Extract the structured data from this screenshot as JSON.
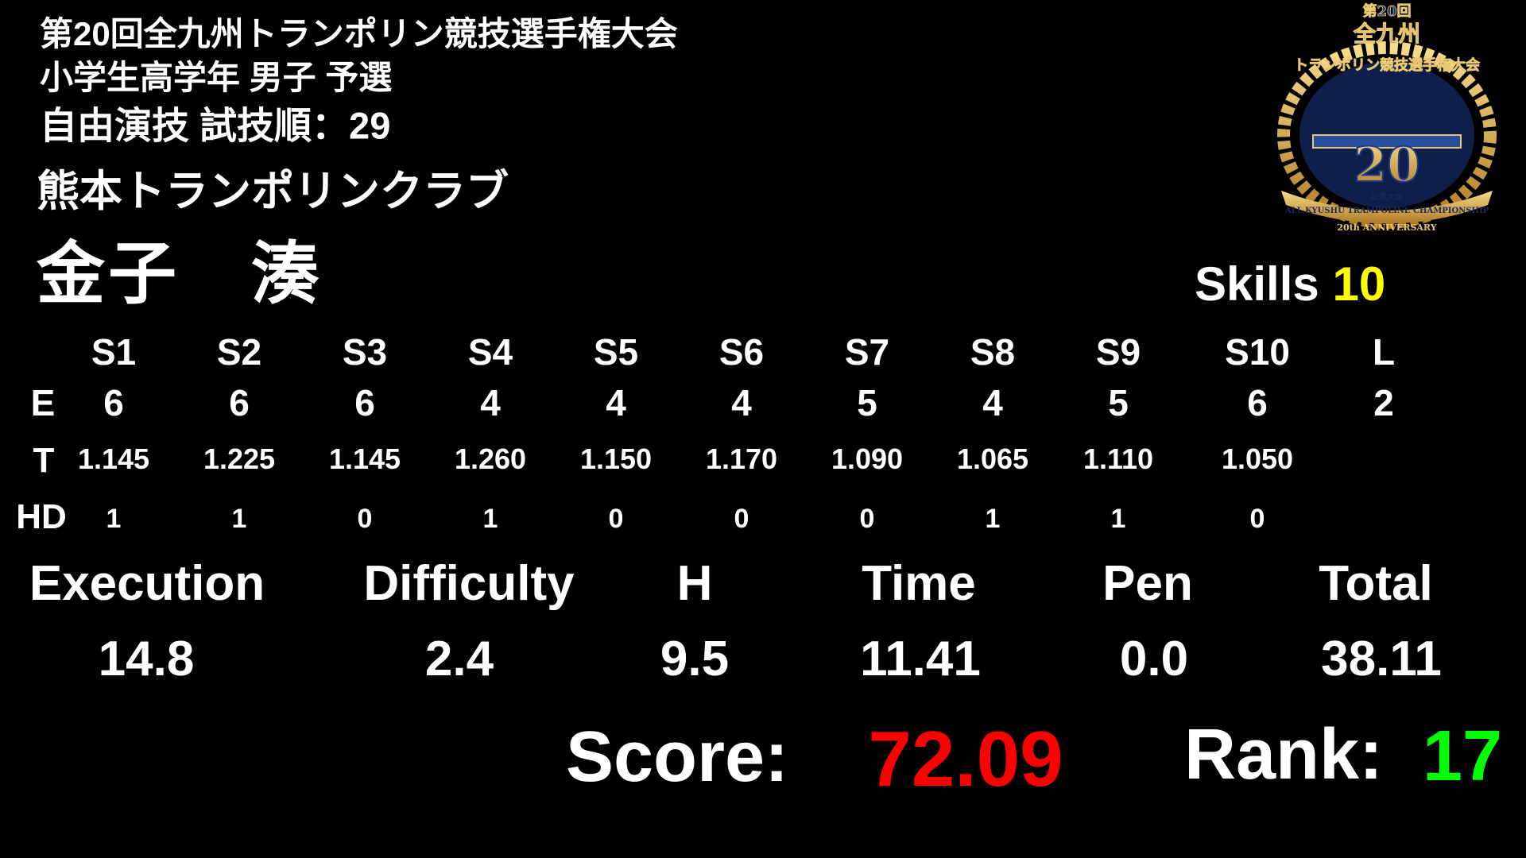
{
  "header": {
    "competition": "第20回全九州トランポリン競技選手権大会",
    "category": "小学生高学年 男子 予選",
    "routine": "自由演技 試技順：29",
    "club": "熊本トランポリンクラブ",
    "athlete": "金子　湊"
  },
  "skills": {
    "label": "Skills",
    "count": "10",
    "count_color": "#ffff00"
  },
  "table": {
    "row_labels": {
      "e": "E",
      "t": "T",
      "hd": "HD"
    },
    "columns": [
      {
        "head": "S1",
        "e": "6",
        "t": "1.145",
        "hd": "1"
      },
      {
        "head": "S2",
        "e": "6",
        "t": "1.225",
        "hd": "1"
      },
      {
        "head": "S3",
        "e": "6",
        "t": "1.145",
        "hd": "0"
      },
      {
        "head": "S4",
        "e": "4",
        "t": "1.260",
        "hd": "1"
      },
      {
        "head": "S5",
        "e": "4",
        "t": "1.150",
        "hd": "0"
      },
      {
        "head": "S6",
        "e": "4",
        "t": "1.170",
        "hd": "0"
      },
      {
        "head": "S7",
        "e": "5",
        "t": "1.090",
        "hd": "0"
      },
      {
        "head": "S8",
        "e": "4",
        "t": "1.065",
        "hd": "1"
      },
      {
        "head": "S9",
        "e": "5",
        "t": "1.110",
        "hd": "1"
      },
      {
        "head": "S10",
        "e": "6",
        "t": "1.050",
        "hd": "0"
      },
      {
        "head": "L",
        "e": "2"
      }
    ]
  },
  "totals": [
    {
      "label": "Execution",
      "value": "14.8"
    },
    {
      "label": "Difficulty",
      "value": "2.4"
    },
    {
      "label": "H",
      "value": "9.5"
    },
    {
      "label": "Time",
      "value": "11.41"
    },
    {
      "label": "Pen",
      "value": "0.0"
    },
    {
      "label": "Total",
      "value": "38.11"
    }
  ],
  "result": {
    "score_label": "Score:",
    "score": "72.09",
    "score_color": "#ff0000",
    "rank_label": "Rank:",
    "rank": "17",
    "rank_color": "#00ff00"
  },
  "logo": {
    "text_top": "第20回",
    "text_main": "全九州",
    "text_sub": "トランポリン競技選手権大会",
    "number": "20",
    "ribbon": "記念大会",
    "english": "ALL KYUSHU TRAMPOLINE CHAMPIONSHIP",
    "anniversary": "20th ANNIVERSARY"
  }
}
